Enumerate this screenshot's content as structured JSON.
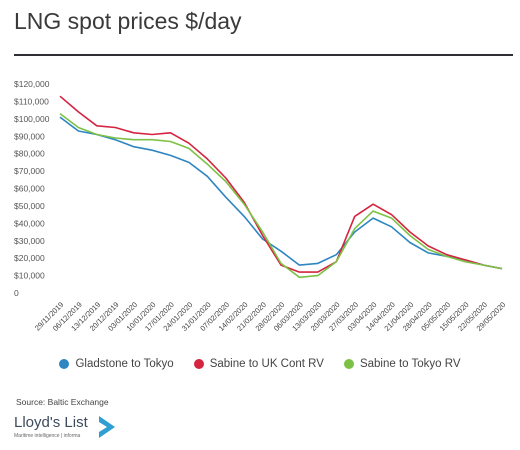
{
  "title": "LNG spot prices $/day",
  "source": "Source: Baltic Exchange",
  "brand": {
    "name": "Lloyd's List",
    "tagline": "Maritime intelligence | informa",
    "mark_color": "#2f9fd3"
  },
  "chart_data": {
    "type": "line",
    "title": "LNG spot prices $/day",
    "xlabel": "",
    "ylabel": "",
    "ylim": [
      0,
      120000
    ],
    "yticks": [
      "0",
      "$10,000",
      "$20,000",
      "$30,000",
      "$40,000",
      "$50,000",
      "$60,000",
      "$70,000",
      "$80,000",
      "$90,000",
      "$100,000",
      "$110,000",
      "$120,000"
    ],
    "x": [
      "29/11/2019",
      "06/12/2019",
      "13/12/2019",
      "20/12/2019",
      "03/01/2020",
      "10/01/2020",
      "17/01/2020",
      "24/01/2020",
      "31/01/2020",
      "07/02/2020",
      "14/02/2020",
      "21/02/2020",
      "28/02/2020",
      "06/03/2020",
      "13/03/2020",
      "20/03/2020",
      "27/03/2020",
      "03/04/2020",
      "14/04/2020",
      "21/04/2020",
      "28/04/2020",
      "05/05/2020",
      "15/05/2020",
      "22/05/2020",
      "29/05/2020"
    ],
    "grid": false,
    "legend": "bottom",
    "series": [
      {
        "name": "Gladstone to Tokyo",
        "color": "#2e86c1",
        "values": [
          101000,
          93000,
          91000,
          88000,
          84000,
          82000,
          79000,
          75000,
          67000,
          55000,
          44000,
          31000,
          24000,
          16000,
          17000,
          22000,
          35000,
          43000,
          38000,
          29000,
          23000,
          21000,
          19000,
          16000,
          14000
        ]
      },
      {
        "name": "Sabine to UK Cont RV",
        "color": "#d4243f",
        "values": [
          113000,
          104000,
          96000,
          95000,
          92000,
          91000,
          92000,
          86000,
          77000,
          66000,
          52000,
          33000,
          16000,
          12000,
          12000,
          18000,
          44000,
          51000,
          45000,
          35000,
          27000,
          22000,
          19000,
          16000,
          14000
        ]
      },
      {
        "name": "Sabine to Tokyo RV",
        "color": "#7cc145",
        "values": [
          103000,
          95000,
          91000,
          89000,
          88000,
          88000,
          87000,
          83000,
          74000,
          64000,
          51000,
          35000,
          17000,
          9000,
          10000,
          18000,
          37000,
          47000,
          43000,
          33000,
          25000,
          21000,
          18000,
          16000,
          14000
        ]
      }
    ]
  }
}
